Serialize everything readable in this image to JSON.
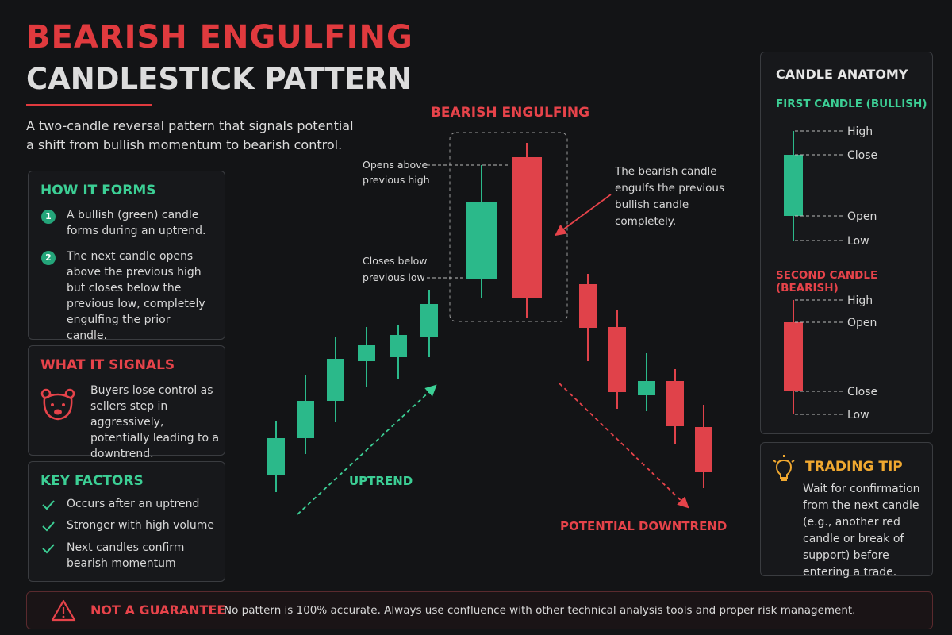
{
  "header": {
    "title_line1": "BEARISH ENGULFING",
    "title_line2": "CANDLESTICK PATTERN",
    "subtitle_lines": [
      "A two-candle reversal pattern that signals potential",
      "a shift from bullish momentum to bearish control."
    ]
  },
  "how_it_forms": {
    "heading": "HOW IT FORMS",
    "steps": [
      {
        "number": "1",
        "text": "A bullish (green) candle forms during an uptrend."
      },
      {
        "number": "2",
        "text": "The next candle opens above the previous high but closes below the previous low, completely engulfing the prior candle."
      }
    ]
  },
  "what_it_signals": {
    "heading": "WHAT IT SIGNALS",
    "text": "Buyers lose control as sellers step in aggressively, potentially leading to a downtrend."
  },
  "key_factors": {
    "heading": "KEY FACTORS",
    "items": [
      "Occurs after an uptrend",
      "Stronger with high volume",
      "Next candles confirm bearish momentum"
    ]
  },
  "diagram": {
    "pattern_label": "BEARISH ENGULFING",
    "opens_above": [
      "Opens above",
      "previous high"
    ],
    "closes_below": [
      "Closes below",
      "previous low"
    ],
    "engulfs_note": [
      "The bearish candle",
      "engulfs the previous",
      "bullish candle",
      "completely."
    ],
    "uptrend_label": "UPTREND",
    "downtrend_label": "POTENTIAL DOWNTREND"
  },
  "anatomy": {
    "heading": "CANDLE ANATOMY",
    "first": {
      "heading": "FIRST CANDLE (BULLISH)",
      "labels": [
        "High",
        "Close",
        "Open",
        "Low"
      ]
    },
    "second": {
      "heading": "SECOND CANDLE (BEARISH)",
      "labels": [
        "High",
        "Open",
        "Close",
        "Low"
      ]
    }
  },
  "tip": {
    "heading": "TRADING TIP",
    "text": "Wait for confirmation from the next candle (e.g., another red candle or break of support) before entering a trade."
  },
  "footer": {
    "heading": "NOT A GUARANTEE",
    "text": "No pattern is 100% accurate. Always use confluence with other technical analysis tools and proper risk management."
  }
}
